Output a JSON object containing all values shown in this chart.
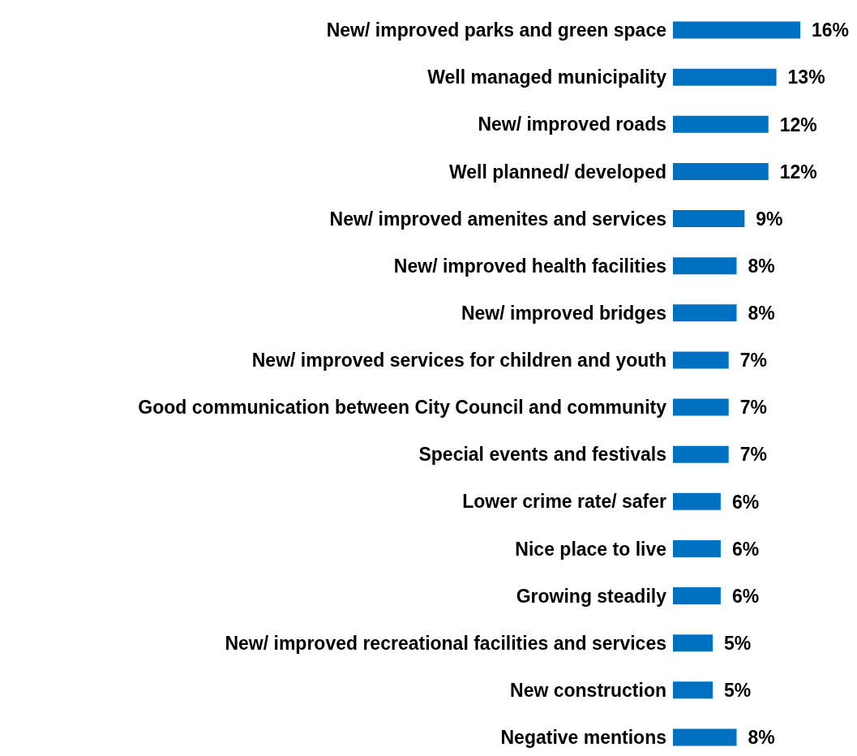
{
  "chart_data": {
    "type": "bar",
    "orientation": "horizontal",
    "categories": [
      "New/ improved parks and green space",
      "Well managed municipality",
      "New/ improved roads",
      "Well planned/ developed",
      "New/ improved amenites and services",
      "New/ improved health facilities",
      "New/ improved bridges",
      "New/ improved services for children and youth",
      "Good communication between City Council and community",
      "Special events and festivals",
      "Lower crime rate/ safer",
      "Nice place to live",
      "Growing steadily",
      "New/ improved recreational facilities and services",
      "New construction",
      "Negative mentions"
    ],
    "values": [
      16,
      13,
      12,
      12,
      9,
      8,
      8,
      7,
      7,
      7,
      6,
      6,
      6,
      5,
      5,
      8
    ],
    "value_labels": [
      "16%",
      "13%",
      "12%",
      "12%",
      "9%",
      "8%",
      "8%",
      "7%",
      "7%",
      "7%",
      "6%",
      "6%",
      "6%",
      "5%",
      "5%",
      "8%"
    ],
    "color": "#0070c0",
    "grid": false,
    "legend": false
  }
}
